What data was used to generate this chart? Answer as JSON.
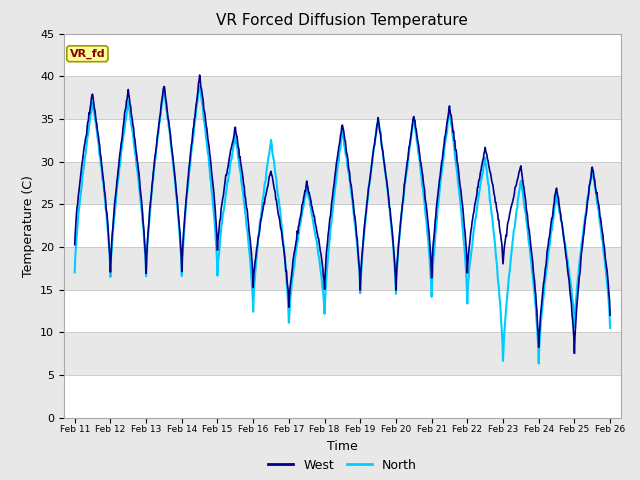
{
  "title": "VR Forced Diffusion Temperature",
  "xlabel": "Time",
  "ylabel": "Temperature (C)",
  "ylim": [
    0,
    45
  ],
  "background_color": "#e8e8e8",
  "plot_bg_color": "#ffffff",
  "west_color": "#00008B",
  "north_color": "#00CCFF",
  "annotation_text": "VR_fd",
  "annotation_bg": "#ffff99",
  "annotation_border": "#999900",
  "annotation_text_color": "#8B0000",
  "x_tick_labels": [
    "Feb 11",
    "Feb 12",
    "Feb 13",
    "Feb 14",
    "Feb 15",
    "Feb 16",
    "Feb 17",
    "Feb 18",
    "Feb 19",
    "Feb 20",
    "Feb 21",
    "Feb 22",
    "Feb 23",
    "Feb 24",
    "Feb 25",
    "Feb 26"
  ],
  "band_colors": [
    "#ffffff",
    "#e8e8e8"
  ],
  "grid_color": "#cccccc",
  "west_lw": 1.2,
  "north_lw": 1.5,
  "west_peaks": [
    20,
    38,
    17,
    38.5,
    17,
    39,
    17,
    40,
    19.5,
    34,
    15.5,
    29,
    13,
    27.5,
    15,
    34.5,
    15,
    35,
    15,
    35.5,
    16.5,
    36.5,
    17,
    31.5,
    18,
    29.5,
    8,
    27,
    7.5,
    29.5,
    12
  ],
  "north_peaks": [
    17,
    37,
    16.5,
    37,
    16.5,
    38.5,
    16.5,
    39,
    16.5,
    33,
    12.5,
    32.5,
    11,
    27,
    12,
    33.5,
    14.5,
    35,
    14.5,
    35,
    14,
    36,
    13.5,
    30.5,
    6.5,
    28,
    6.5,
    26,
    10.5,
    29,
    10.5
  ]
}
